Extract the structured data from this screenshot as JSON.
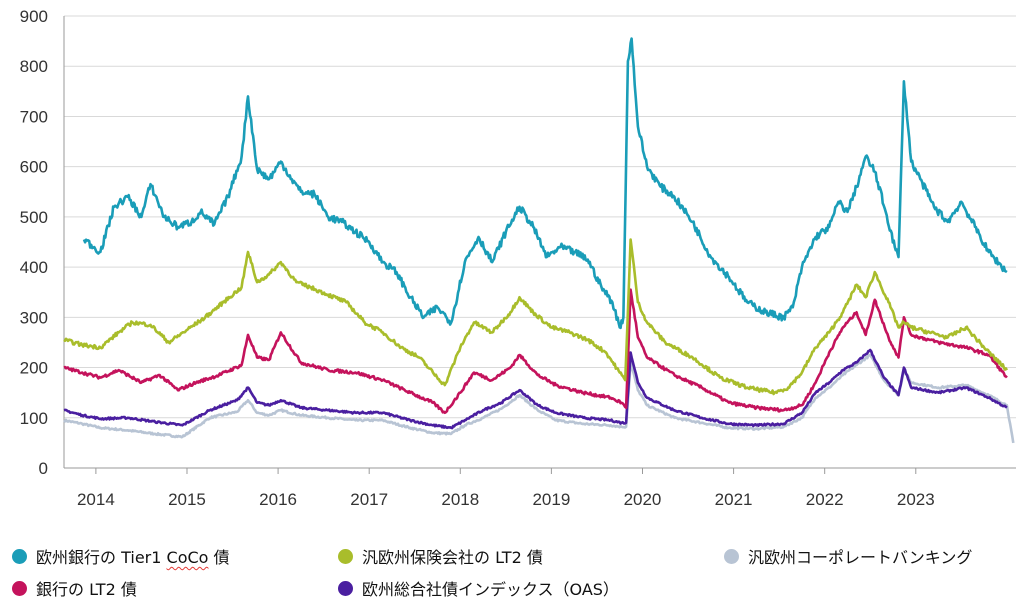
{
  "chart_data": {
    "type": "line",
    "title": "",
    "xlabel": "",
    "ylabel": "",
    "ylim": [
      0,
      900
    ],
    "yticks": [
      0,
      100,
      200,
      300,
      400,
      500,
      600,
      700,
      800,
      900
    ],
    "xlim": [
      2013.6,
      2024.05
    ],
    "xtick_labels": [
      "2014",
      "2015",
      "2016",
      "2017",
      "2018",
      "2019",
      "2020",
      "2021",
      "2022",
      "2023"
    ],
    "xtick_values": [
      2013.95,
      2014.95,
      2015.95,
      2016.95,
      2017.95,
      2018.95,
      2019.95,
      2020.95,
      2021.95,
      2022.95
    ],
    "grid": "horizontal",
    "series": [
      {
        "name": "欧州銀行の Tier1 CoCo 債",
        "color": "#1a9db8",
        "x": [
          2013.82,
          2014.0,
          2014.15,
          2014.3,
          2014.45,
          2014.55,
          2014.7,
          2014.85,
          2015.0,
          2015.1,
          2015.25,
          2015.4,
          2015.55,
          2015.62,
          2015.72,
          2015.85,
          2015.98,
          2016.1,
          2016.2,
          2016.35,
          2016.5,
          2016.65,
          2016.8,
          2016.95,
          2017.1,
          2017.25,
          2017.4,
          2017.55,
          2017.7,
          2017.85,
          2018.0,
          2018.15,
          2018.3,
          2018.45,
          2018.6,
          2018.75,
          2018.9,
          2019.05,
          2019.2,
          2019.35,
          2019.5,
          2019.62,
          2019.7,
          2019.74,
          2019.79,
          2019.83,
          2019.9,
          2020.0,
          2020.15,
          2020.3,
          2020.5,
          2020.7,
          2020.9,
          2021.1,
          2021.3,
          2021.5,
          2021.6,
          2021.7,
          2021.85,
          2022.0,
          2022.1,
          2022.2,
          2022.3,
          2022.4,
          2022.5,
          2022.62,
          2022.72,
          2022.76,
          2022.82,
          2022.9,
          2023.0,
          2023.15,
          2023.3,
          2023.45,
          2023.6,
          2023.75,
          2023.95
        ],
        "values": [
          455,
          430,
          520,
          540,
          500,
          565,
          500,
          480,
          490,
          510,
          485,
          540,
          620,
          740,
          595,
          575,
          610,
          575,
          550,
          545,
          500,
          490,
          470,
          450,
          410,
          390,
          340,
          300,
          320,
          290,
          410,
          460,
          410,
          470,
          520,
          480,
          420,
          440,
          430,
          415,
          360,
          330,
          280,
          300,
          810,
          855,
          680,
          600,
          560,
          540,
          490,
          420,
          380,
          330,
          310,
          300,
          320,
          400,
          460,
          480,
          530,
          510,
          560,
          620,
          590,
          510,
          440,
          420,
          770,
          610,
          575,
          520,
          490,
          530,
          480,
          430,
          390
        ]
      },
      {
        "name": "汎欧州保険会社の LT2 債",
        "color": "#a9bd2b",
        "x": [
          2013.6,
          2013.8,
          2014.0,
          2014.2,
          2014.35,
          2014.55,
          2014.75,
          2014.95,
          2015.15,
          2015.35,
          2015.55,
          2015.62,
          2015.72,
          2015.85,
          2015.98,
          2016.15,
          2016.3,
          2016.5,
          2016.7,
          2016.9,
          2017.1,
          2017.3,
          2017.5,
          2017.65,
          2017.78,
          2017.95,
          2018.1,
          2018.3,
          2018.5,
          2018.6,
          2018.75,
          2018.95,
          2019.15,
          2019.35,
          2019.55,
          2019.7,
          2019.76,
          2019.82,
          2019.9,
          2020.0,
          2020.2,
          2020.5,
          2020.8,
          2021.1,
          2021.4,
          2021.55,
          2021.7,
          2021.85,
          2022.0,
          2022.15,
          2022.3,
          2022.4,
          2022.5,
          2022.65,
          2022.76,
          2022.82,
          2022.9,
          2023.1,
          2023.3,
          2023.5,
          2023.7,
          2023.95
        ],
        "values": [
          255,
          245,
          240,
          270,
          290,
          285,
          250,
          275,
          300,
          330,
          360,
          430,
          370,
          385,
          410,
          370,
          360,
          345,
          330,
          290,
          270,
          240,
          220,
          190,
          165,
          240,
          290,
          270,
          310,
          340,
          310,
          280,
          270,
          255,
          230,
          190,
          175,
          455,
          330,
          290,
          250,
          220,
          180,
          160,
          150,
          160,
          190,
          240,
          270,
          310,
          365,
          340,
          390,
          330,
          280,
          290,
          280,
          270,
          260,
          280,
          240,
          195
        ]
      },
      {
        "name": "銀行の LT2 債",
        "color": "#c4135c",
        "x": [
          2013.6,
          2013.8,
          2014.0,
          2014.2,
          2014.45,
          2014.65,
          2014.85,
          2015.05,
          2015.3,
          2015.55,
          2015.62,
          2015.72,
          2015.85,
          2015.98,
          2016.2,
          2016.5,
          2016.8,
          2017.1,
          2017.4,
          2017.65,
          2017.78,
          2017.95,
          2018.1,
          2018.3,
          2018.5,
          2018.6,
          2018.8,
          2019.0,
          2019.3,
          2019.6,
          2019.72,
          2019.77,
          2019.82,
          2019.9,
          2020.0,
          2020.3,
          2020.6,
          2020.9,
          2021.2,
          2021.5,
          2021.7,
          2021.85,
          2022.0,
          2022.15,
          2022.3,
          2022.4,
          2022.5,
          2022.65,
          2022.76,
          2022.82,
          2022.9,
          2023.2,
          2023.5,
          2023.75,
          2023.95
        ],
        "values": [
          200,
          190,
          180,
          195,
          170,
          185,
          155,
          170,
          185,
          205,
          265,
          220,
          215,
          270,
          210,
          195,
          190,
          175,
          150,
          130,
          110,
          150,
          190,
          175,
          200,
          225,
          185,
          165,
          150,
          140,
          130,
          120,
          355,
          260,
          220,
          185,
          160,
          130,
          120,
          115,
          125,
          170,
          230,
          280,
          310,
          265,
          335,
          260,
          220,
          300,
          265,
          250,
          240,
          225,
          180
        ]
      },
      {
        "name": "欧州総合社債インデックス（OAS）",
        "color": "#4a1fa0",
        "x": [
          2013.6,
          2013.8,
          2014.0,
          2014.3,
          2014.6,
          2014.9,
          2015.2,
          2015.5,
          2015.62,
          2015.72,
          2015.85,
          2015.98,
          2016.2,
          2016.5,
          2016.8,
          2017.1,
          2017.4,
          2017.65,
          2017.85,
          2018.0,
          2018.2,
          2018.4,
          2018.6,
          2018.8,
          2019.0,
          2019.3,
          2019.6,
          2019.72,
          2019.77,
          2019.82,
          2019.9,
          2020.0,
          2020.3,
          2020.6,
          2020.9,
          2021.2,
          2021.5,
          2021.7,
          2021.85,
          2022.0,
          2022.15,
          2022.3,
          2022.45,
          2022.6,
          2022.76,
          2022.82,
          2022.9,
          2023.2,
          2023.5,
          2023.75,
          2023.95
        ],
        "values": [
          115,
          105,
          98,
          100,
          92,
          85,
          115,
          135,
          160,
          130,
          125,
          135,
          120,
          115,
          110,
          110,
          95,
          85,
          80,
          95,
          115,
          130,
          155,
          125,
          110,
          100,
          95,
          90,
          90,
          230,
          170,
          140,
          115,
          100,
          88,
          85,
          88,
          110,
          150,
          170,
          195,
          210,
          235,
          180,
          145,
          200,
          160,
          150,
          160,
          140,
          120
        ]
      },
      {
        "name": "汎欧州コーポレートバンキング",
        "color": "#b8c4d4",
        "x": [
          2013.6,
          2013.8,
          2014.0,
          2014.3,
          2014.6,
          2014.9,
          2015.2,
          2015.5,
          2015.62,
          2015.72,
          2015.85,
          2015.98,
          2016.2,
          2016.5,
          2016.8,
          2017.1,
          2017.4,
          2017.65,
          2017.85,
          2018.0,
          2018.2,
          2018.4,
          2018.6,
          2018.8,
          2019.0,
          2019.3,
          2019.6,
          2019.72,
          2019.77,
          2019.82,
          2019.9,
          2020.0,
          2020.3,
          2020.6,
          2020.9,
          2021.2,
          2021.5,
          2021.7,
          2021.85,
          2022.0,
          2022.15,
          2022.3,
          2022.45,
          2022.6,
          2022.76,
          2022.82,
          2022.9,
          2023.2,
          2023.5,
          2023.75,
          2023.95,
          2024.02
        ],
        "values": [
          95,
          88,
          80,
          75,
          68,
          62,
          100,
          112,
          135,
          110,
          105,
          115,
          105,
          100,
          95,
          95,
          80,
          70,
          68,
          85,
          100,
          118,
          145,
          115,
          95,
          88,
          85,
          82,
          82,
          210,
          155,
          125,
          100,
          90,
          80,
          78,
          82,
          100,
          140,
          160,
          185,
          205,
          225,
          175,
          145,
          195,
          170,
          160,
          165,
          145,
          125,
          50
        ]
      }
    ]
  },
  "legend": {
    "coco": "欧州銀行の Tier1 CoCo 債",
    "coco_prefix": "欧州銀行の Tier1 ",
    "coco_word": "CoCo",
    "coco_suffix": " 債",
    "insurance": "汎欧州保険会社の LT2 債",
    "corporate_banking": "汎欧州コーポレートバンキング",
    "bank_lt2": "銀行の LT2 債",
    "oas": "欧州総合社債インデックス（OAS）"
  }
}
